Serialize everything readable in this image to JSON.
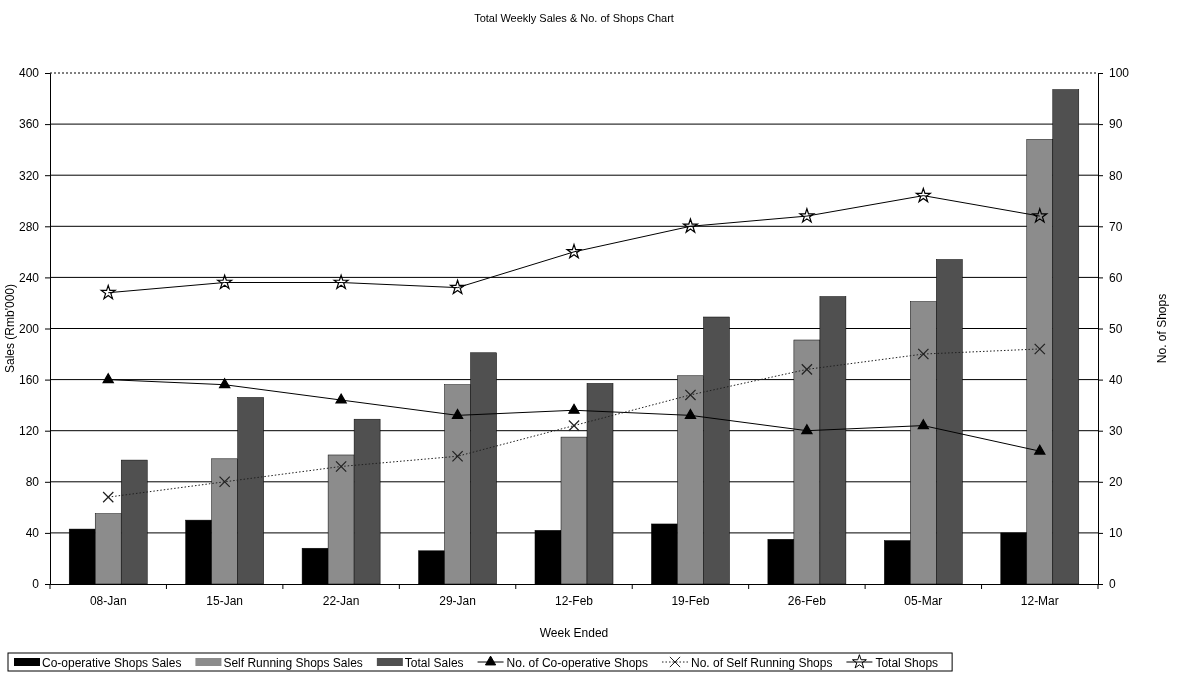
{
  "chart_data": {
    "type": "bar",
    "title": "Total Weekly Sales & No. of Shops Chart",
    "xlabel": "Week Ended",
    "ylabel": "Sales (Rmb'000)",
    "y2label": "No. of Shops",
    "categories": [
      "08-Jan",
      "15-Jan",
      "22-Jan",
      "29-Jan",
      "12-Feb",
      "19-Feb",
      "26-Feb",
      "05-Mar",
      "12-Mar"
    ],
    "series": [
      {
        "name": "Co-operative Shops Sales",
        "color": "#000000",
        "values": [
          43,
          50,
          28,
          26,
          42,
          47,
          35,
          34,
          40
        ]
      },
      {
        "name": "Self Running Shops Sales",
        "color": "#8c8c8c",
        "values": [
          55,
          98,
          101,
          156,
          115,
          163,
          191,
          221,
          348
        ]
      },
      {
        "name": "Total Sales",
        "color": "#505050",
        "values": [
          97,
          146,
          129,
          181,
          157,
          209,
          225,
          254,
          387
        ]
      },
      {
        "name": "No. of Co-operative Shops",
        "type": "line",
        "axis": "y2",
        "color": "#000000",
        "marker": "triangle",
        "line_style": "solid",
        "values": [
          40,
          39,
          36,
          33,
          34,
          33,
          30,
          31,
          26
        ]
      },
      {
        "name": "No. of Self Running Shops",
        "type": "line",
        "axis": "y2",
        "color": "#202020",
        "marker": "cross",
        "line_style": "dotted",
        "values": [
          17,
          20,
          23,
          25,
          31,
          37,
          42,
          45,
          46
        ]
      },
      {
        "name": "Total Shops",
        "type": "line",
        "axis": "y2",
        "color": "#000000",
        "marker": "star",
        "line_style": "solid",
        "values": [
          57,
          59,
          59,
          58,
          65,
          70,
          72,
          76,
          72
        ]
      }
    ],
    "ylim": [
      0,
      400
    ],
    "yticks": [
      0,
      40,
      80,
      120,
      160,
      200,
      240,
      280,
      320,
      360,
      400
    ],
    "y2lim": [
      0,
      100
    ],
    "y2ticks": [
      0,
      10,
      20,
      30,
      40,
      50,
      60,
      70,
      80,
      90,
      100
    ],
    "grid": "y",
    "legend": "bottom"
  }
}
